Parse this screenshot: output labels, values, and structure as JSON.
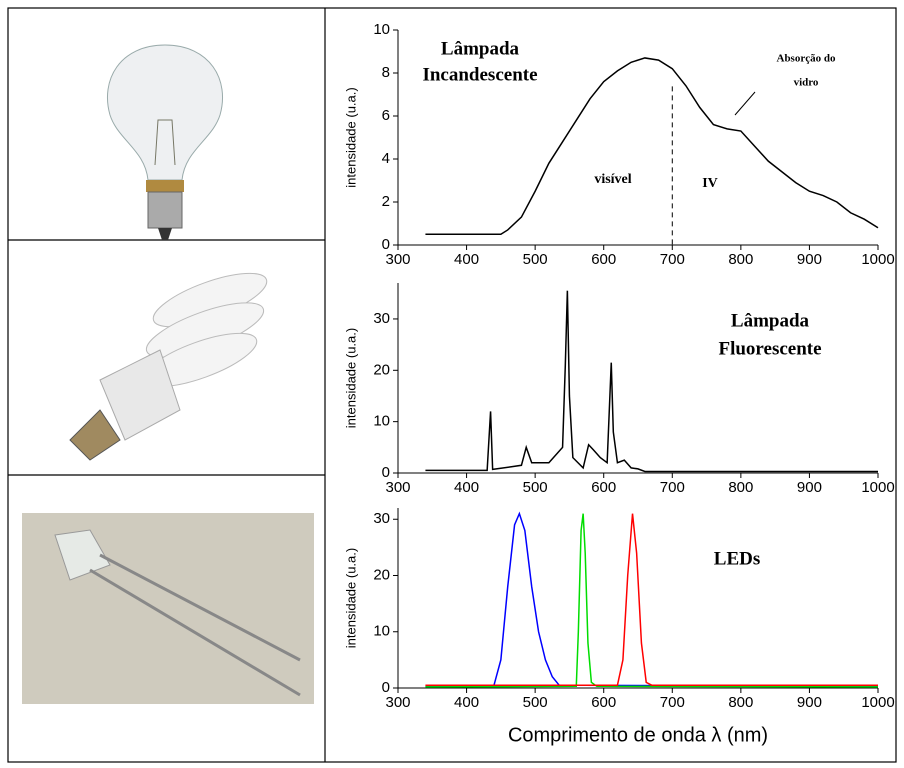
{
  "chart_data": [
    {
      "type": "line",
      "title": [
        "Lâmpada",
        "Incandescente"
      ],
      "ylabel": "intensidade (u.a.)",
      "annotations": [
        "Absorção do",
        "vidro",
        "visível",
        "IV"
      ],
      "vline": 700,
      "xlim": [
        300,
        1000
      ],
      "ylim": [
        0,
        10
      ],
      "xticks": [
        300,
        400,
        500,
        600,
        700,
        800,
        900,
        1000
      ],
      "yticks": [
        0,
        2,
        4,
        6,
        8,
        10
      ],
      "series": [
        {
          "color": "#000000",
          "x": [
            340,
            450,
            460,
            480,
            500,
            520,
            540,
            560,
            580,
            600,
            620,
            640,
            660,
            680,
            700,
            720,
            740,
            760,
            780,
            800,
            820,
            840,
            860,
            880,
            900,
            920,
            940,
            960,
            980,
            1000
          ],
          "values": [
            0.5,
            0.5,
            0.7,
            1.3,
            2.5,
            3.8,
            4.8,
            5.8,
            6.8,
            7.6,
            8.1,
            8.5,
            8.7,
            8.6,
            8.2,
            7.4,
            6.4,
            5.6,
            5.4,
            5.3,
            4.6,
            3.9,
            3.4,
            2.9,
            2.5,
            2.3,
            2.0,
            1.5,
            1.2,
            0.8
          ]
        }
      ]
    },
    {
      "type": "line",
      "title": [
        "Lâmpada",
        "Fluorescente"
      ],
      "ylabel": "intensidade (u.a.)",
      "xlim": [
        300,
        1000
      ],
      "ylim": [
        0,
        37
      ],
      "xticks": [
        300,
        400,
        500,
        600,
        700,
        800,
        900,
        1000
      ],
      "yticks": [
        0,
        10,
        20,
        30
      ],
      "series": [
        {
          "color": "#000000",
          "x": [
            340,
            430,
            435,
            438,
            480,
            487,
            495,
            520,
            540,
            544,
            547,
            550,
            555,
            570,
            578,
            585,
            595,
            605,
            611,
            614,
            620,
            630,
            640,
            650,
            660,
            700,
            1000
          ],
          "values": [
            0.5,
            0.5,
            12,
            0.7,
            1.5,
            5,
            2,
            2,
            5,
            21,
            35.5,
            15,
            3,
            1,
            5.5,
            4.5,
            3,
            2,
            21.5,
            8,
            2,
            2.5,
            1,
            0.8,
            0.3,
            0.3,
            0.3
          ]
        }
      ]
    },
    {
      "type": "line",
      "title": [
        "LEDs"
      ],
      "ylabel": "intensidade (u.a.)",
      "xlabel": "Comprimento de onda λ (nm)",
      "xlim": [
        300,
        1000
      ],
      "ylim": [
        0,
        32
      ],
      "xticks": [
        300,
        400,
        500,
        600,
        700,
        800,
        900,
        1000
      ],
      "yticks": [
        0,
        10,
        20,
        30
      ],
      "series": [
        {
          "color": "#0000ff",
          "x": [
            340,
            440,
            450,
            460,
            470,
            477,
            485,
            495,
            505,
            515,
            525,
            535,
            1000
          ],
          "values": [
            0.3,
            0.5,
            5,
            18,
            29,
            31,
            28,
            18,
            10,
            5,
            2,
            0.5,
            0.3
          ]
        },
        {
          "color": "#00dd00",
          "x": [
            340,
            560,
            563,
            567,
            570,
            573,
            577,
            582,
            590,
            1000
          ],
          "values": [
            0.2,
            0.3,
            10,
            28,
            31,
            24,
            8,
            1,
            0.3,
            0.2
          ]
        },
        {
          "color": "#ff0000",
          "x": [
            340,
            620,
            628,
            635,
            642,
            648,
            655,
            662,
            670,
            1000
          ],
          "values": [
            0.5,
            0.5,
            5,
            20,
            31,
            24,
            8,
            1,
            0.5,
            0.5
          ]
        }
      ]
    }
  ]
}
